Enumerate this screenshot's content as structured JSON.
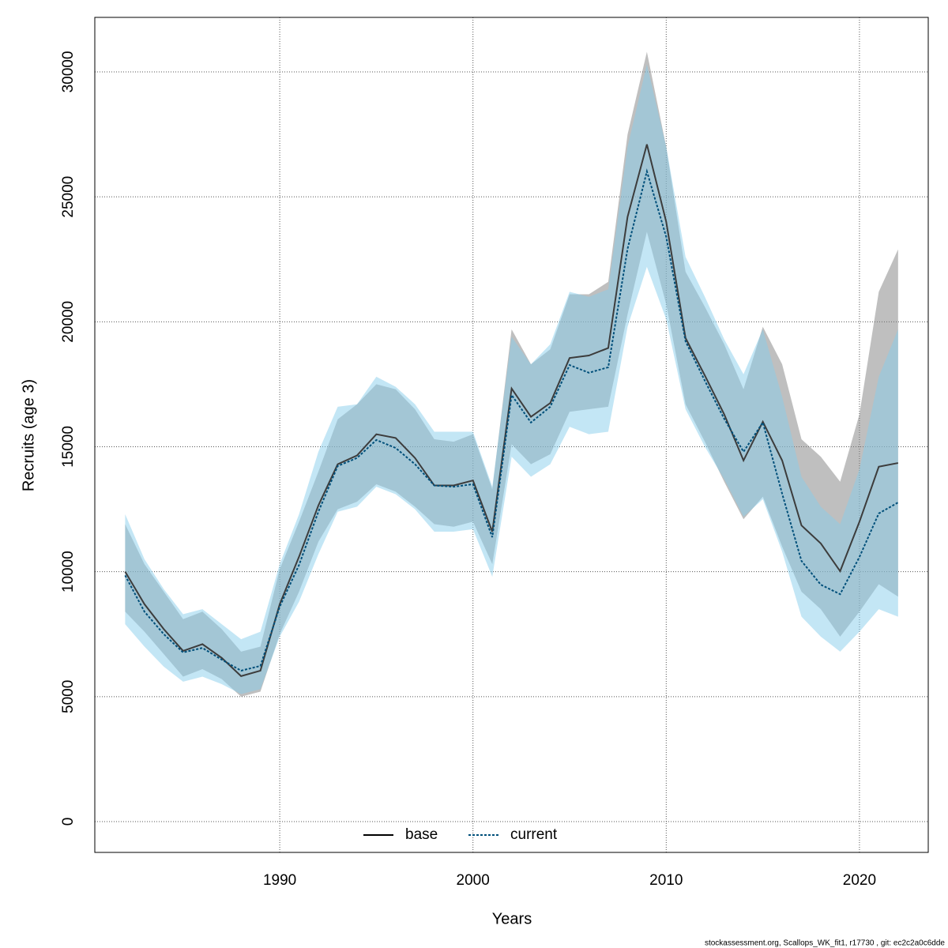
{
  "chart_data": {
    "type": "line",
    "x_label": "Years",
    "y_label": "Recruits (age 3)",
    "footnote": "stockassessment.org, Scallops_WK_fit1, r17730 , git: ec2c2a0c6dde",
    "x": [
      1982,
      1983,
      1984,
      1985,
      1986,
      1987,
      1988,
      1989,
      1990,
      1991,
      1992,
      1993,
      1994,
      1995,
      1996,
      1997,
      1998,
      1999,
      2000,
      2001,
      2002,
      2003,
      2004,
      2005,
      2006,
      2007,
      2008,
      2009,
      2010,
      2011,
      2012,
      2013,
      2014,
      2015,
      2016,
      2017,
      2018,
      2019,
      2020,
      2021,
      2022
    ],
    "xlim": [
      1980.43,
      2023.56
    ],
    "xticks": [
      1990,
      2000,
      2010,
      2020
    ],
    "ylim": [
      -1233,
      32181
    ],
    "yticks": [
      0,
      5000,
      10000,
      15000,
      20000,
      25000,
      30000
    ],
    "grid": true,
    "legend": "bottom",
    "series": [
      {
        "name": "base",
        "color": "#3c3c3c",
        "band_color": "#808080",
        "dash": false,
        "values": [
          10000,
          8700,
          7700,
          6830,
          7100,
          6550,
          5820,
          6040,
          8700,
          10600,
          12650,
          14300,
          14650,
          15500,
          15350,
          14550,
          13450,
          13450,
          13650,
          11600,
          17330,
          16200,
          16750,
          18550,
          18650,
          18950,
          24200,
          27100,
          24000,
          19350,
          17850,
          16300,
          14450,
          16000,
          14450,
          11850,
          11130,
          10020,
          12000,
          14200,
          14350
        ],
        "upper": [
          11900,
          10300,
          9200,
          8100,
          8400,
          7700,
          6800,
          7000,
          10100,
          12000,
          14000,
          16100,
          16700,
          17500,
          17300,
          16500,
          15300,
          15200,
          15500,
          13300,
          19700,
          18300,
          18900,
          21100,
          21100,
          21600,
          27500,
          30800,
          27000,
          22000,
          20600,
          19100,
          17300,
          19800,
          18300,
          15300,
          14600,
          13600,
          16300,
          21200,
          22900
        ],
        "lower": [
          8400,
          7600,
          6700,
          5800,
          6100,
          5700,
          5000,
          5200,
          7500,
          9200,
          11200,
          12500,
          12800,
          13500,
          13200,
          12600,
          11900,
          11800,
          12000,
          10300,
          15100,
          14300,
          14700,
          16400,
          16500,
          16600,
          20300,
          23600,
          20700,
          16700,
          15200,
          13600,
          12100,
          13000,
          11000,
          9200,
          8500,
          7400,
          8400,
          9500,
          9000
        ]
      },
      {
        "name": "current",
        "color": "#004f7a",
        "band_color": "#87ceeb",
        "dash": true,
        "values": [
          9850,
          8400,
          7500,
          6770,
          6950,
          6480,
          6040,
          6230,
          8600,
          10270,
          12400,
          14230,
          14550,
          15270,
          14950,
          14300,
          13450,
          13400,
          13500,
          11380,
          17070,
          15970,
          16600,
          18270,
          17960,
          18180,
          22920,
          26020,
          23400,
          19220,
          17640,
          16120,
          14800,
          15970,
          13120,
          10430,
          9480,
          9100,
          10590,
          12330,
          12770
        ],
        "upper": [
          12300,
          10500,
          9300,
          8300,
          8500,
          7900,
          7300,
          7600,
          10300,
          12300,
          14800,
          16600,
          16700,
          17800,
          17400,
          16700,
          15600,
          15600,
          15600,
          13400,
          19400,
          18300,
          19100,
          21200,
          21000,
          21300,
          27000,
          30300,
          27000,
          22600,
          21000,
          19300,
          17900,
          19700,
          17000,
          13800,
          12600,
          11900,
          14100,
          17800,
          19700
        ],
        "lower": [
          7900,
          7000,
          6200,
          5600,
          5800,
          5500,
          5100,
          5300,
          7400,
          8800,
          10700,
          12400,
          12600,
          13400,
          13100,
          12500,
          11600,
          11600,
          11700,
          9800,
          14600,
          13800,
          14300,
          15800,
          15500,
          15600,
          19800,
          22200,
          20100,
          16500,
          15000,
          13700,
          12200,
          12900,
          10800,
          8200,
          7400,
          6800,
          7600,
          8500,
          8200
        ]
      }
    ]
  }
}
